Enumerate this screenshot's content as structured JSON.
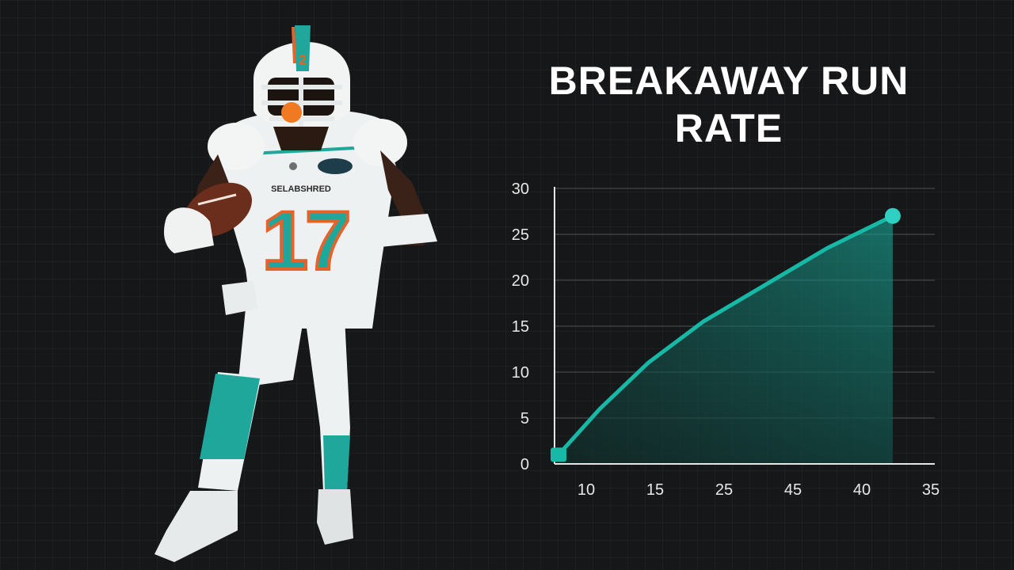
{
  "chart_data": {
    "type": "area",
    "title": "BREAKAWAY RUN RATE",
    "xlabel": "",
    "ylabel": "",
    "x_tick_labels": [
      "10",
      "15",
      "25",
      "45",
      "40",
      "35"
    ],
    "y_ticks": [
      0,
      5,
      10,
      15,
      20,
      25,
      30
    ],
    "y_tick_labels": [
      "0",
      "5",
      "10",
      "15",
      "20",
      "25",
      "30"
    ],
    "ylim": [
      0,
      30
    ],
    "grid": true,
    "legend": "none",
    "series": [
      {
        "x_index": [
          0,
          0.6,
          1.3,
          2.1,
          3.0,
          3.9,
          4.85
        ],
        "values": [
          1,
          6,
          11,
          15.5,
          19.5,
          23.5,
          27
        ]
      }
    ],
    "line_color": "#17b8a6",
    "axis_color": "#e6e6e6"
  },
  "player": {
    "jersey_number": "17",
    "helmet_number": "2",
    "jersey_wordmark": "SELABSHRED",
    "patch_text": "",
    "colors": {
      "aqua": "#1fa79b",
      "orange": "#e4632a",
      "white": "#eef1f1"
    }
  }
}
